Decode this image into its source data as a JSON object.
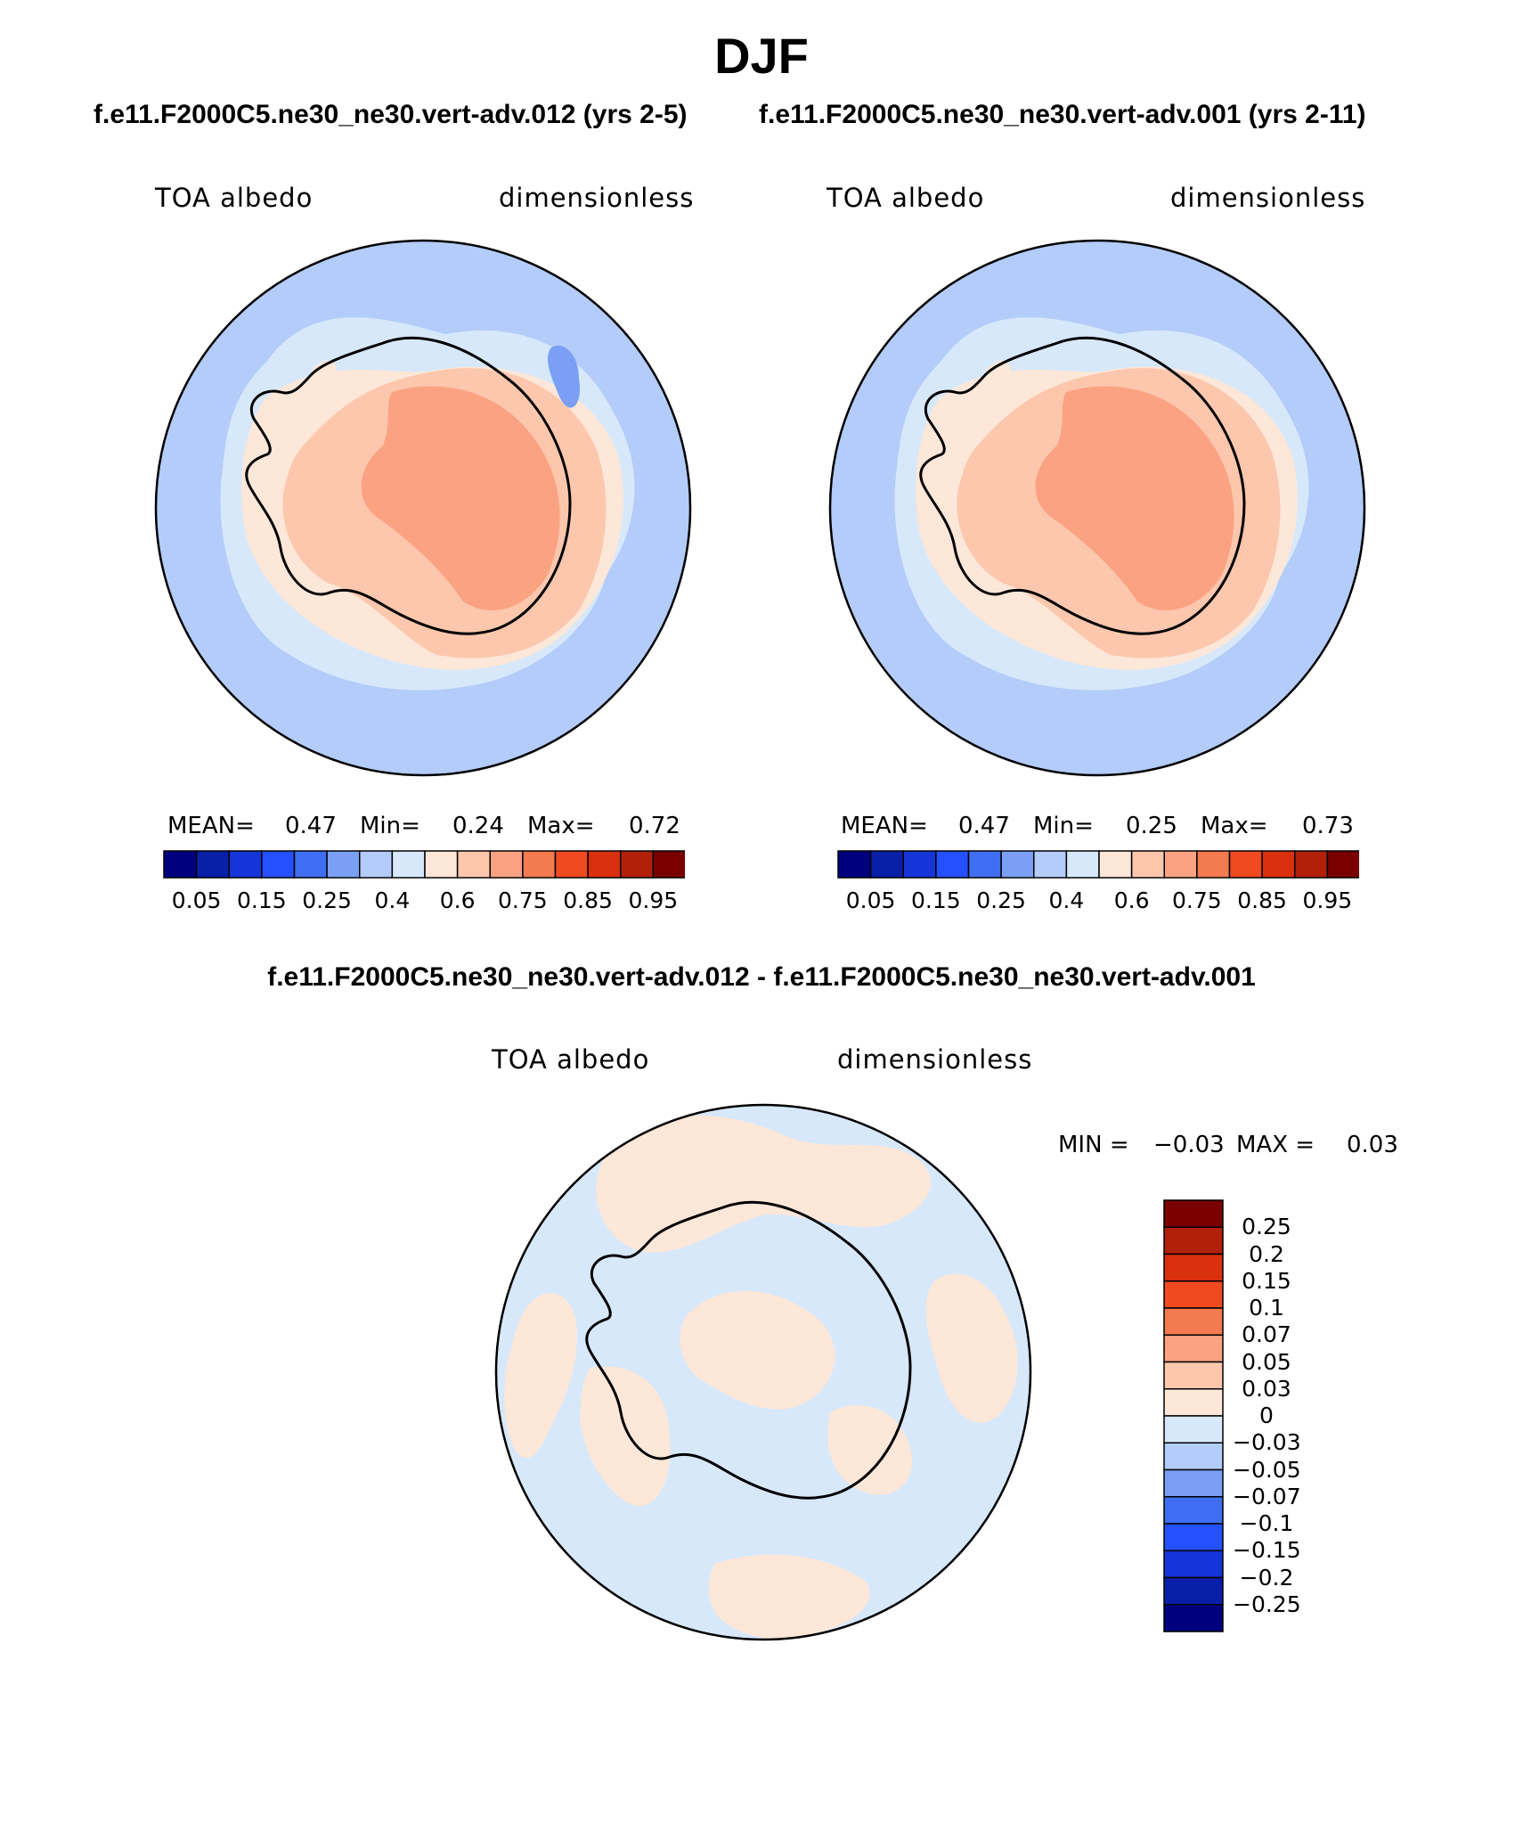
{
  "title": "DJF",
  "panels": [
    {
      "case_title": "f.e11.F2000C5.ne30_ne30.vert-adv.012 (yrs 2-5)",
      "variable": "TOA albedo",
      "units": "dimensionless",
      "stats": {
        "mean_label": "MEAN=",
        "mean": "0.47",
        "min_label": "Min=",
        "min": "0.24",
        "max_label": "Max=",
        "max": "0.72"
      },
      "colorbar_ticks": [
        "0.05",
        "0.15",
        "0.25",
        "0.4",
        "0.6",
        "0.75",
        "0.85",
        "0.95"
      ]
    },
    {
      "case_title": "f.e11.F2000C5.ne30_ne30.vert-adv.001 (yrs 2-11)",
      "variable": "TOA albedo",
      "units": "dimensionless",
      "stats": {
        "mean_label": "MEAN=",
        "mean": "0.47",
        "min_label": "Min=",
        "min": "0.25",
        "max_label": "Max=",
        "max": "0.73"
      },
      "colorbar_ticks": [
        "0.05",
        "0.15",
        "0.25",
        "0.4",
        "0.6",
        "0.75",
        "0.85",
        "0.95"
      ]
    }
  ],
  "difference": {
    "title": "f.e11.F2000C5.ne30_ne30.vert-adv.012 - f.e11.F2000C5.ne30_ne30.vert-adv.001",
    "variable": "TOA albedo",
    "units": "dimensionless",
    "min_label": "MIN =",
    "min": "−0.03",
    "max_label": "MAX =",
    "max": "0.03",
    "colorbar_ticks": [
      "0.25",
      "0.2",
      "0.15",
      "0.1",
      "0.07",
      "0.05",
      "0.03",
      "0",
      "−0.03",
      "−0.05",
      "−0.07",
      "−0.1",
      "−0.15",
      "−0.2",
      "−0.25"
    ]
  },
  "colors": {
    "abs_scale": [
      "#00007f",
      "#0a1fa8",
      "#1535d8",
      "#2450ff",
      "#3f6ef2",
      "#7a9ff5",
      "#b3ccf9",
      "#d7e8fb",
      "#fde7d8",
      "#fcc7ad",
      "#fba283",
      "#f47a50",
      "#f04a20",
      "#d9300d",
      "#b3200a",
      "#7a0000"
    ],
    "diff_scale": [
      "#7a0000",
      "#b3200a",
      "#d9300d",
      "#f04a20",
      "#f47a50",
      "#fba283",
      "#fcc7ad",
      "#fde7d8",
      "#d7e8fb",
      "#b3ccf9",
      "#7a9ff5",
      "#3f6ef2",
      "#2450ff",
      "#1535d8",
      "#0a1fa8",
      "#00007f"
    ],
    "ocean": "#b3ccf9",
    "sea_ice": "#d7e8fb",
    "coast": "#fde7d8",
    "land": "#fcc7ad",
    "plateau": "#fba283",
    "diff_pos": "#fde7d8",
    "diff_neg": "#d7e8fb"
  }
}
